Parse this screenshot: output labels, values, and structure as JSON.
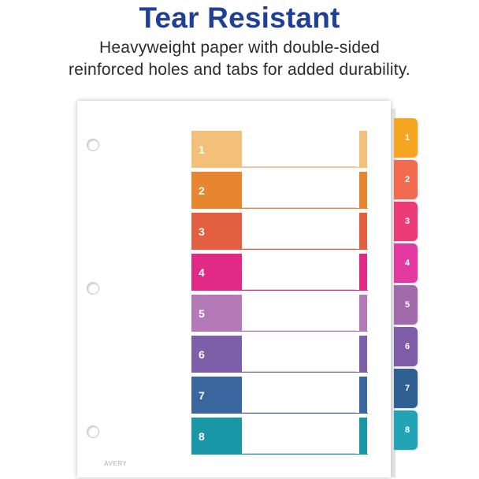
{
  "header": {
    "title": "Tear Resistant",
    "subtitle_line1": "Heavyweight paper with double-sided",
    "subtitle_line2": "reinforced holes and tabs for added durability."
  },
  "brand_mark": "AVERY",
  "colors": {
    "title": "#1f3f99",
    "sections": [
      "#f3c07a",
      "#e8862f",
      "#e35f3f",
      "#e02a86",
      "#b37ab7",
      "#7d5fa9",
      "#3a66a0",
      "#1a97a6"
    ],
    "tabs": [
      "#f5a51f",
      "#f26a50",
      "#ec3c78",
      "#e23aa1",
      "#a16aaa",
      "#7e5ca7",
      "#2f5f93",
      "#22a4b6"
    ]
  },
  "rows": [
    {
      "number": "1"
    },
    {
      "number": "2"
    },
    {
      "number": "3"
    },
    {
      "number": "4"
    },
    {
      "number": "5"
    },
    {
      "number": "6"
    },
    {
      "number": "7"
    },
    {
      "number": "8"
    }
  ],
  "tabs": [
    {
      "number": "1"
    },
    {
      "number": "2"
    },
    {
      "number": "3"
    },
    {
      "number": "4"
    },
    {
      "number": "5"
    },
    {
      "number": "6"
    },
    {
      "number": "7"
    },
    {
      "number": "8"
    }
  ]
}
